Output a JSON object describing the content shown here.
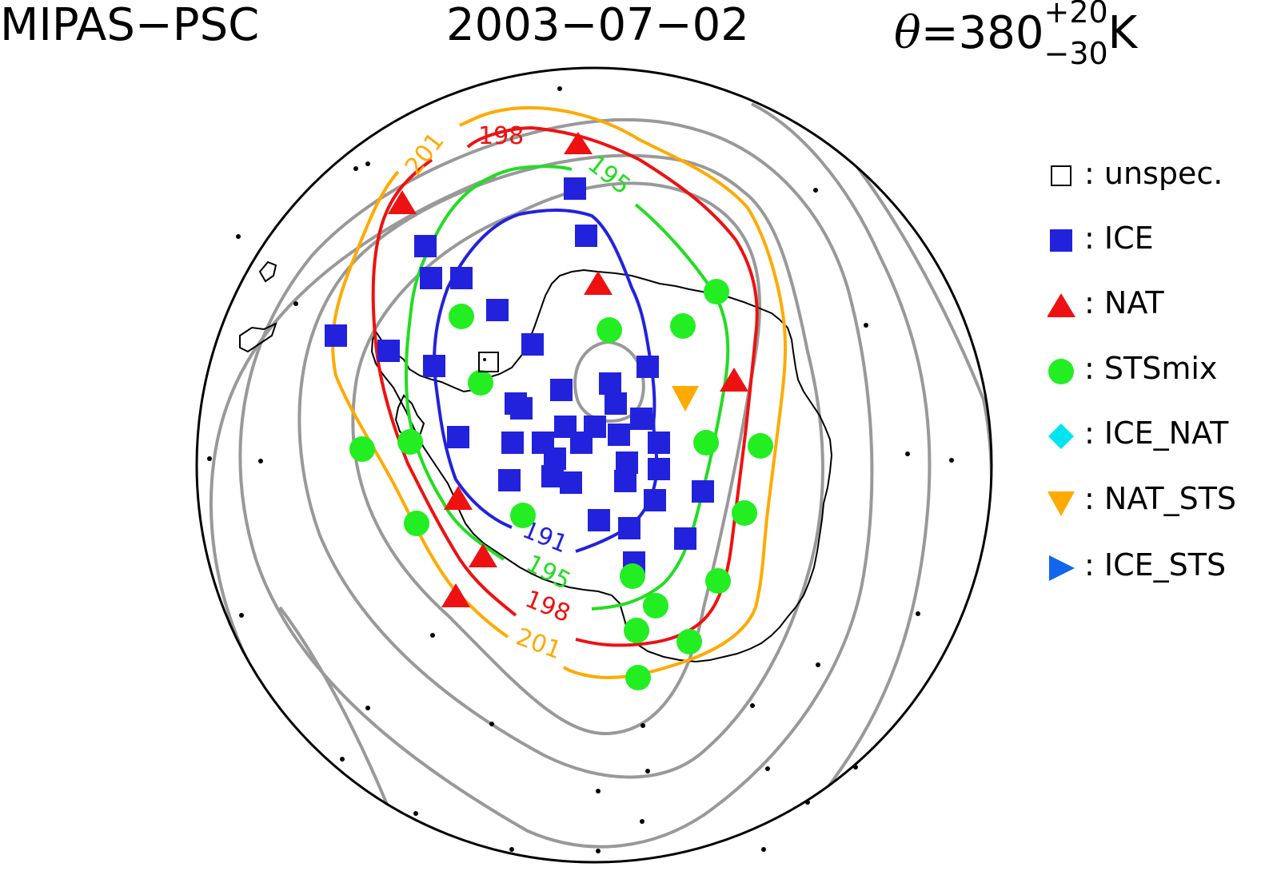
{
  "header": {
    "instrument": "MIPAS−PSC",
    "date": "2003−07−02",
    "theta_symbol": "θ",
    "theta_eq": "=380",
    "theta_plus": "+20",
    "theta_minus": "−30",
    "theta_unit": "K"
  },
  "contour_labels": {
    "c191": "191",
    "c195_top": "195",
    "c195_bottom": "195",
    "c198_top": "198",
    "c198_bottom": "198",
    "c201_top": "201",
    "c201_bottom": "201"
  },
  "contour_colors": {
    "191": "#2222dd",
    "195": "#22dd22",
    "198": "#ee1111",
    "201": "#ffaa00",
    "background": "#999999"
  },
  "legend": [
    {
      "sep": ":",
      "label": "unspec.",
      "color": "#000000",
      "marker": "open-square"
    },
    {
      "sep": ":",
      "label": "ICE",
      "color": "#2222dd",
      "marker": "filled-square"
    },
    {
      "sep": ":",
      "label": "NAT",
      "color": "#ee1111",
      "marker": "triangle-up"
    },
    {
      "sep": ":",
      "label": "STSmix",
      "color": "#22ee22",
      "marker": "circle"
    },
    {
      "sep": ":",
      "label": "ICE_NAT",
      "color": "#00e5ee",
      "marker": "diamond"
    },
    {
      "sep": ":",
      "label": "NAT_STS",
      "color": "#ffaa00",
      "marker": "triangle-down"
    },
    {
      "sep": ":",
      "label": "ICE_STS",
      "color": "#1166ee",
      "marker": "triangle-right"
    }
  ]
}
